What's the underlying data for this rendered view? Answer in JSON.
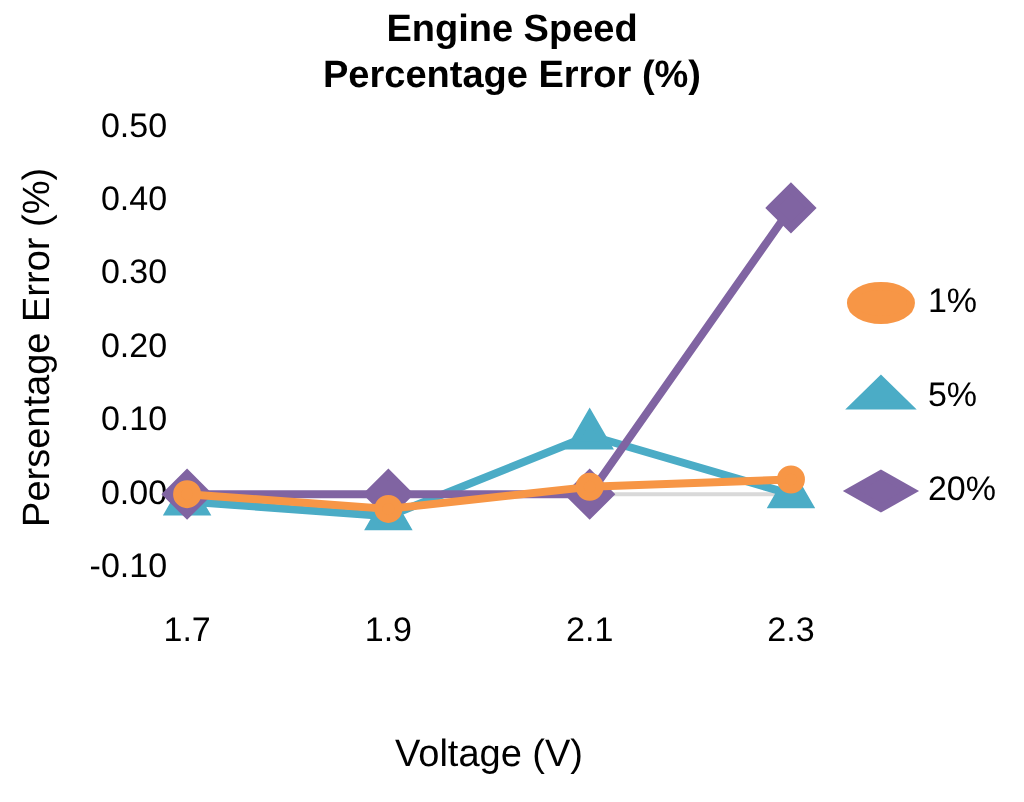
{
  "chart_data": {
    "type": "line",
    "title": "Engine Speed\nPercentage Error (%)",
    "xlabel": "Voltage (V)",
    "ylabel": "Persentage Error (%)",
    "categories": [
      "1.7",
      "1.9",
      "2.1",
      "2.3"
    ],
    "series": [
      {
        "name": "1%",
        "color": "#f79646",
        "marker": "circle",
        "values": [
          0,
          -0.02,
          0.01,
          0.02
        ]
      },
      {
        "name": "5%",
        "color": "#4bacc6",
        "marker": "triangle",
        "values": [
          -0.01,
          -0.03,
          0.08,
          0
        ]
      },
      {
        "name": "20%",
        "color": "#8064a2",
        "marker": "diamond",
        "values": [
          0,
          0,
          0,
          0.39
        ]
      }
    ],
    "ylim": [
      -0.1,
      0.5
    ],
    "yticks": [
      {
        "value": -0.1,
        "label": "-0.10"
      },
      {
        "value": 0,
        "label": "0.00"
      },
      {
        "value": 0.1,
        "label": "0.10"
      },
      {
        "value": 0.2,
        "label": "0.20"
      },
      {
        "value": 0.3,
        "label": "0.30"
      },
      {
        "value": 0.4,
        "label": "0.40"
      },
      {
        "value": 0.5,
        "label": "0.50"
      }
    ],
    "ref_lines": [
      {
        "axis": "y",
        "value": 0,
        "color": "#d9d9d9"
      }
    ],
    "grid": false,
    "legend": "right"
  }
}
